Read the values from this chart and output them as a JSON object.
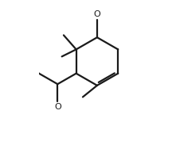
{
  "bg_color": "#ffffff",
  "line_color": "#1a1a1a",
  "line_width": 1.6,
  "figsize": [
    2.16,
    1.78
  ],
  "dpi": 100
}
